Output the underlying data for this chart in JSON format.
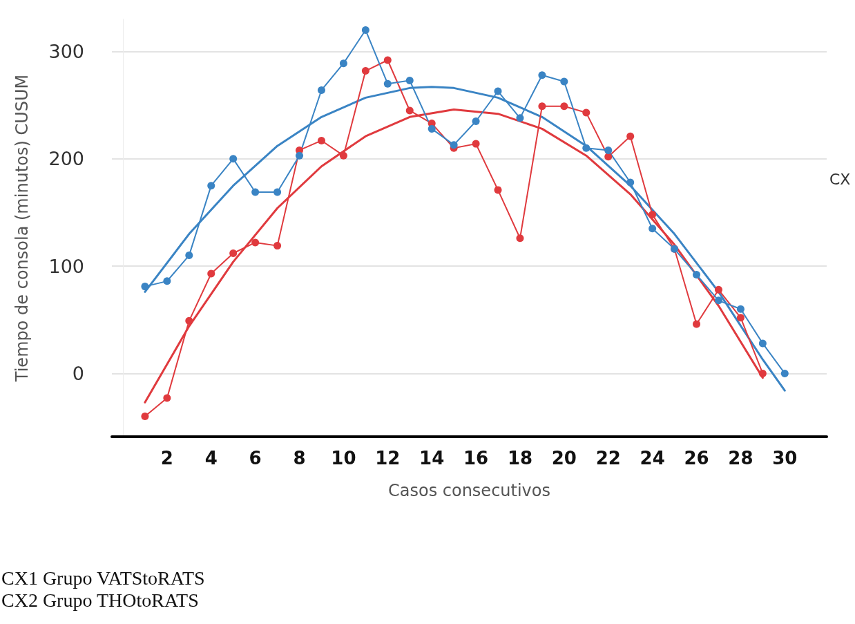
{
  "chart_data": {
    "type": "line",
    "xlabel": "Casos consecutivos",
    "ylabel": "Tiempo de consola (minutos) CUSUM",
    "legend_title": "CX",
    "annotations": [
      "CX1 Grupo VATStoRATS",
      "CX2 Grupo THOtoRATS"
    ],
    "xlim": [
      -0.5,
      31.9
    ],
    "xticks": [
      2,
      4,
      6,
      8,
      10,
      12,
      14,
      16,
      18,
      20,
      22,
      24,
      26,
      28,
      30
    ],
    "ylim": [
      -59,
      330
    ],
    "yticks": [
      0,
      100,
      200,
      300
    ],
    "grid": "y",
    "marker": "circle",
    "line_style": "solid",
    "series": [
      {
        "color": "#e03a3e",
        "x": [
          1,
          2,
          3,
          4,
          5,
          6,
          7,
          8,
          9,
          10,
          11,
          12,
          13,
          14,
          15,
          16,
          17,
          18,
          19,
          20,
          21,
          22,
          23,
          24,
          25,
          26,
          27,
          28,
          29
        ],
        "values": [
          -40,
          -23,
          49,
          93,
          112,
          122,
          119,
          208,
          217,
          203,
          282,
          292,
          245,
          233,
          210,
          214,
          171,
          126,
          249,
          249,
          243,
          202,
          221,
          148,
          116,
          46,
          78,
          52,
          0
        ]
      },
      {
        "color": "#3a84c4",
        "x": [
          1,
          2,
          3,
          4,
          5,
          6,
          7,
          8,
          9,
          10,
          11,
          12,
          13,
          14,
          15,
          16,
          17,
          18,
          19,
          20,
          21,
          22,
          23,
          24,
          25,
          26,
          27,
          28,
          29,
          30
        ],
        "values": [
          81,
          86,
          110,
          175,
          200,
          169,
          169,
          203,
          264,
          289,
          320,
          270,
          273,
          228,
          213,
          235,
          263,
          238,
          278,
          272,
          210,
          208,
          178,
          135,
          116,
          92,
          68,
          60,
          28,
          0
        ]
      },
      {
        "color": "#e03a3e",
        "marker": "none",
        "x": [
          1,
          3,
          5,
          7,
          9,
          11,
          13,
          15,
          17,
          19,
          21,
          23,
          25,
          27,
          29
        ],
        "values": [
          -27,
          44,
          104,
          154,
          193,
          221,
          239,
          246,
          242,
          228,
          203,
          167,
          120,
          63,
          -4
        ]
      },
      {
        "color": "#3a84c4",
        "marker": "none",
        "x": [
          1,
          3,
          5,
          7,
          9,
          11,
          13,
          14,
          15,
          17,
          19,
          21,
          23,
          25,
          27,
          29,
          30
        ],
        "values": [
          76,
          130,
          175,
          212,
          239,
          257,
          266,
          267,
          266,
          257,
          239,
          212,
          175,
          130,
          76,
          13,
          -16
        ]
      }
    ]
  }
}
